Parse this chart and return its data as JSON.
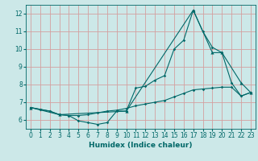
{
  "title": "",
  "xlabel": "Humidex (Indice chaleur)",
  "bg_color": "#cce8e8",
  "grid_color": "#d4a0a0",
  "line_color": "#006868",
  "ylim": [
    5.5,
    12.5
  ],
  "xlim": [
    -0.5,
    23.5
  ],
  "yticks": [
    6,
    7,
    8,
    9,
    10,
    11,
    12
  ],
  "xticks": [
    0,
    1,
    2,
    3,
    4,
    5,
    6,
    7,
    8,
    9,
    10,
    11,
    12,
    13,
    14,
    15,
    16,
    17,
    18,
    19,
    20,
    21,
    22,
    23
  ],
  "series1_x": [
    0,
    1,
    2,
    3,
    4,
    5,
    6,
    7,
    8,
    9,
    10,
    11,
    12,
    13,
    14,
    15,
    16,
    17,
    18,
    19,
    20,
    21,
    22,
    23
  ],
  "series1_y": [
    6.7,
    6.6,
    6.5,
    6.3,
    6.25,
    5.95,
    5.85,
    5.75,
    5.85,
    6.5,
    6.5,
    7.8,
    7.9,
    8.25,
    8.5,
    10.0,
    10.5,
    12.2,
    11.0,
    10.1,
    9.8,
    8.1,
    7.35,
    7.55
  ],
  "series2_x": [
    0,
    1,
    2,
    3,
    4,
    5,
    6,
    7,
    8,
    9,
    10,
    11,
    12,
    13,
    14,
    15,
    16,
    17,
    18,
    19,
    20,
    21,
    22,
    23
  ],
  "series2_y": [
    6.7,
    6.6,
    6.5,
    6.3,
    6.25,
    6.25,
    6.3,
    6.4,
    6.5,
    6.55,
    6.65,
    6.8,
    6.9,
    7.0,
    7.1,
    7.3,
    7.5,
    7.7,
    7.75,
    7.8,
    7.85,
    7.85,
    7.35,
    7.55
  ],
  "series3_x": [
    0,
    3,
    10,
    17,
    19,
    20,
    22,
    23
  ],
  "series3_y": [
    6.7,
    6.3,
    6.5,
    12.2,
    9.8,
    9.8,
    8.1,
    7.55
  ]
}
